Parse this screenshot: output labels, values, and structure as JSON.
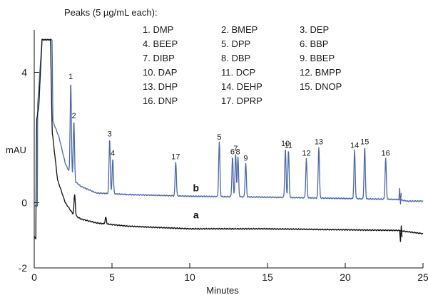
{
  "chart_data": {
    "type": "line",
    "title": "",
    "xlabel": "Minutes",
    "ylabel": "mAU",
    "xlim": [
      0,
      25
    ],
    "ylim": [
      -2,
      5.3
    ],
    "x_ticks": [
      0,
      5,
      10,
      15,
      20,
      25
    ],
    "y_ticks": [
      -2,
      0,
      4
    ],
    "grid": false,
    "legend": {
      "heading": "Peaks (5 µg/mL each):",
      "columns": [
        [
          "1. DMP",
          "4. BEEP",
          "7. DIBP",
          "10. DAP",
          "13. DHP",
          "16. DNP"
        ],
        [
          "2. BMEP",
          "5. DPP",
          "8. DBP",
          "11. DCP",
          "14. DEHP",
          "17. DPRP"
        ],
        [
          "3. DEP",
          "6. BBP",
          "9. BBEP",
          "12. BMPP",
          "15. DNOP"
        ]
      ]
    },
    "series": [
      {
        "name": "b",
        "color": "#4a68b0",
        "baseline": [
          [
            0,
            -0.1
          ],
          [
            0.2,
            -0.1
          ],
          [
            0.22,
            3.0
          ],
          [
            0.5,
            5.0
          ],
          [
            1.15,
            5.0
          ],
          [
            1.2,
            2.5
          ],
          [
            1.6,
            2.0
          ],
          [
            2.0,
            1.2
          ],
          [
            2.5,
            0.7
          ],
          [
            3.0,
            0.5
          ],
          [
            4.0,
            0.3
          ],
          [
            6.0,
            0.25
          ],
          [
            10.0,
            0.2
          ],
          [
            15.0,
            0.17
          ],
          [
            20.0,
            0.13
          ],
          [
            23.4,
            0.1
          ],
          [
            24.0,
            0.05
          ],
          [
            25.0,
            0.05
          ]
        ],
        "peaks": [
          {
            "label": "1",
            "x": 2.35,
            "y": 3.7
          },
          {
            "label": "2",
            "x": 2.55,
            "y": 2.5
          },
          {
            "label": "3",
            "x": 4.85,
            "y": 1.95
          },
          {
            "label": "4",
            "x": 5.05,
            "y": 1.35
          },
          {
            "label": "17",
            "x": 9.1,
            "y": 1.25
          },
          {
            "label": "5",
            "x": 11.9,
            "y": 1.85
          },
          {
            "label": "6",
            "x": 12.75,
            "y": 1.4
          },
          {
            "label": "7",
            "x": 12.95,
            "y": 1.5
          },
          {
            "label": "8",
            "x": 13.1,
            "y": 1.4
          },
          {
            "label": "9",
            "x": 13.6,
            "y": 1.2
          },
          {
            "label": "10",
            "x": 16.15,
            "y": 1.65
          },
          {
            "label": "11",
            "x": 16.35,
            "y": 1.6
          },
          {
            "label": "12",
            "x": 17.5,
            "y": 1.35
          },
          {
            "label": "13",
            "x": 18.3,
            "y": 1.7
          },
          {
            "label": "14",
            "x": 20.6,
            "y": 1.6
          },
          {
            "label": "15",
            "x": 21.25,
            "y": 1.7
          },
          {
            "label": "16",
            "x": 22.6,
            "y": 1.35
          }
        ],
        "trace_label": "b",
        "trace_label_x": 10.4,
        "trace_label_y": 0.35
      },
      {
        "name": "a",
        "color": "#111111",
        "baseline": [
          [
            0,
            -1.05
          ],
          [
            0.1,
            -1.1
          ],
          [
            0.15,
            2.5
          ],
          [
            0.3,
            3.0
          ],
          [
            0.5,
            5.0
          ],
          [
            1.05,
            5.0
          ],
          [
            1.15,
            2.2
          ],
          [
            1.5,
            0.7
          ],
          [
            2.0,
            0.0
          ],
          [
            2.5,
            -0.35
          ],
          [
            3.0,
            -0.5
          ],
          [
            4.0,
            -0.62
          ],
          [
            6.0,
            -0.72
          ],
          [
            10.0,
            -0.8
          ],
          [
            15.0,
            -0.8
          ],
          [
            20.0,
            -0.83
          ],
          [
            23.4,
            -0.85
          ],
          [
            25.0,
            -0.95
          ]
        ],
        "peaks": [
          {
            "label": "",
            "x": 2.6,
            "y": 0.25
          },
          {
            "label": "",
            "x": 4.6,
            "y": -0.45
          }
        ],
        "trace_label": "a",
        "trace_label_x": 10.4,
        "trace_label_y": -0.48
      }
    ]
  }
}
